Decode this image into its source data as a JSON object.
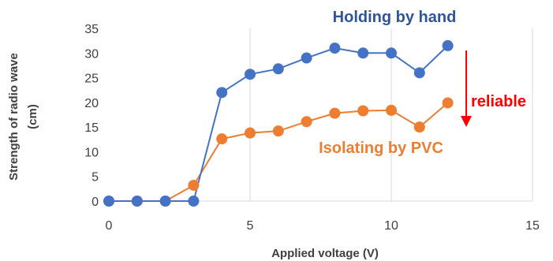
{
  "chart_data": {
    "type": "line",
    "xlabel": "Applied voltage (V)",
    "ylabel": [
      "Strength of radio wave",
      "(cm)"
    ],
    "xlim": [
      0,
      15
    ],
    "ylim": [
      0,
      35
    ],
    "xticks": [
      0,
      5,
      10,
      15
    ],
    "yticks": [
      0,
      5,
      10,
      15,
      20,
      25,
      30,
      35
    ],
    "grid": "vertical",
    "series": [
      {
        "name": "Holding by hand",
        "color": "#4472C4",
        "x": [
          0,
          1,
          2,
          3,
          4,
          5,
          6,
          7,
          8,
          9,
          10,
          11,
          12
        ],
        "y": [
          0,
          0,
          0,
          0,
          22,
          25.7,
          26.8,
          29,
          31,
          30,
          30,
          26,
          31.5
        ]
      },
      {
        "name": "Isolating by PVC",
        "color": "#ED7D31",
        "x": [
          0,
          1,
          2,
          3,
          4,
          5,
          6,
          7,
          8,
          9,
          10,
          11,
          12
        ],
        "y": [
          0,
          0,
          0,
          3.2,
          12.6,
          13.8,
          14.2,
          16.1,
          17.8,
          18.3,
          18.4,
          15,
          19.9
        ]
      }
    ],
    "annotations": [
      {
        "text": "reliable",
        "color": "#FF0000"
      }
    ]
  }
}
